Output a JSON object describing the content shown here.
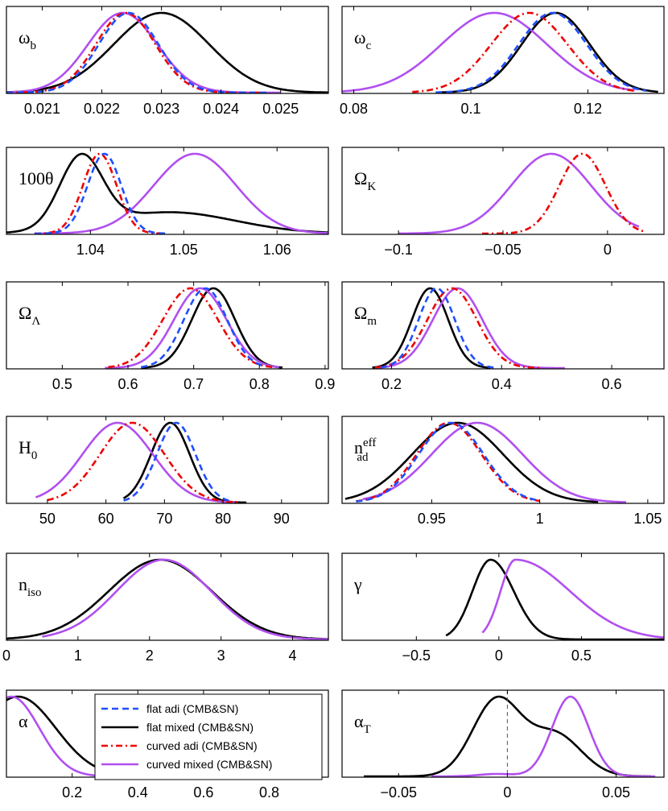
{
  "chart_data": {
    "type": "line",
    "legend": {
      "placement": "bottom-left-panel-top-right",
      "entries": [
        {
          "key": "flat_adi",
          "label": "flat adi (CMB&SN)",
          "color": "#1f4fff",
          "dash": "dashed"
        },
        {
          "key": "flat_mixed",
          "label": "flat mixed (CMB&SN)",
          "color": "#000000",
          "dash": "solid"
        },
        {
          "key": "curved_adi",
          "label": "curved adi (CMB&SN)",
          "color": "#ee0000",
          "dash": "dashdot"
        },
        {
          "key": "curved_mixed",
          "label": "curved mixed (CMB&SN)",
          "color": "#b14ff0",
          "dash": "solid"
        }
      ]
    },
    "panels": [
      {
        "id": "omega_b",
        "label_main": "ω",
        "label_sub": "b",
        "label_sup": "",
        "xlim": [
          0.0204,
          0.0258
        ],
        "ticks": [
          0.021,
          0.022,
          0.023,
          0.024,
          0.025
        ],
        "tick_labels": [
          "0.021",
          "0.022",
          "0.023",
          "0.024",
          "0.025"
        ],
        "series": [
          {
            "key": "flat_adi",
            "type": "gauss",
            "mu": 0.02245,
            "sigma": 0.0005,
            "range": [
              0.0204,
              0.0248
            ]
          },
          {
            "key": "curved_adi",
            "type": "gauss",
            "mu": 0.0224,
            "sigma": 0.0005,
            "range": [
              0.0204,
              0.0248
            ]
          },
          {
            "key": "flat_mixed",
            "type": "gauss",
            "mu": 0.023,
            "sigma": 0.0008,
            "range": [
              0.0204,
              0.0258
            ]
          },
          {
            "key": "curved_mixed",
            "type": "gauss",
            "mu": 0.02235,
            "sigma": 0.00058,
            "range": [
              0.0204,
              0.025
            ]
          }
        ]
      },
      {
        "id": "omega_c",
        "label_main": "ω",
        "label_sub": "c",
        "label_sup": "",
        "xlim": [
          0.078,
          0.133
        ],
        "ticks": [
          0.08,
          0.1,
          0.12
        ],
        "tick_labels": [
          "0.08",
          "0.1",
          "0.12"
        ],
        "series": [
          {
            "key": "flat_adi",
            "type": "gauss",
            "mu": 0.114,
            "sigma": 0.0058,
            "range": [
              0.094,
              0.13
            ]
          },
          {
            "key": "curved_adi",
            "type": "gauss",
            "mu": 0.11,
            "sigma": 0.0065,
            "range": [
              0.09,
              0.128
            ]
          },
          {
            "key": "flat_mixed",
            "type": "gauss",
            "mu": 0.1145,
            "sigma": 0.0058,
            "range": [
              0.094,
              0.132
            ]
          },
          {
            "key": "curved_mixed",
            "type": "gauss",
            "mu": 0.104,
            "sigma": 0.009,
            "range": [
              0.078,
              0.128
            ]
          }
        ]
      },
      {
        "id": "theta",
        "label_main": "100θ",
        "label_sub": "",
        "label_sup": "",
        "xlim": [
          1.031,
          1.0655
        ],
        "ticks": [
          1.04,
          1.05,
          1.06
        ],
        "tick_labels": [
          "1.04",
          "1.05",
          "1.06"
        ],
        "series": [
          {
            "key": "flat_adi",
            "type": "gauss",
            "mu": 1.0415,
            "sigma": 0.0018,
            "range": [
              1.034,
              1.048
            ]
          },
          {
            "key": "curved_adi",
            "type": "gauss",
            "mu": 1.041,
            "sigma": 0.0018,
            "range": [
              1.034,
              1.048
            ]
          },
          {
            "key": "flat_mixed",
            "type": "mix",
            "comps": [
              [
                1.039,
                0.0023,
                1.0
              ],
              [
                1.0485,
                0.007,
                0.3
              ]
            ],
            "range": [
              1.031,
              1.0655
            ]
          },
          {
            "key": "curved_mixed",
            "type": "gauss",
            "mu": 1.0512,
            "sigma": 0.0044,
            "range": [
              1.0345,
              1.0655
            ]
          }
        ]
      },
      {
        "id": "omega_k",
        "label_main": "Ω",
        "label_sub": "K",
        "label_sup": "",
        "xlim": [
          -0.127,
          0.027
        ],
        "ticks": [
          -0.1,
          -0.05,
          0
        ],
        "tick_labels": [
          "−0.1",
          "−0.05",
          "0"
        ],
        "series": [
          {
            "key": "curved_adi",
            "type": "gauss",
            "mu": -0.012,
            "sigma": 0.011,
            "range": [
              -0.06,
              0.018
            ]
          },
          {
            "key": "curved_mixed",
            "type": "gauss",
            "mu": -0.027,
            "sigma": 0.019,
            "range": [
              -0.1,
              0.015
            ]
          }
        ]
      },
      {
        "id": "omega_lambda",
        "label_main": "Ω",
        "label_sub": "Λ",
        "label_sup": "",
        "xlim": [
          0.415,
          0.905
        ],
        "ticks": [
          0.5,
          0.6,
          0.7,
          0.8,
          0.9
        ],
        "tick_labels": [
          "0.5",
          "0.6",
          "0.7",
          "0.8",
          "0.9"
        ],
        "series": [
          {
            "key": "flat_adi",
            "type": "gauss",
            "mu": 0.718,
            "sigma": 0.033,
            "range": [
              0.62,
              0.81
            ]
          },
          {
            "key": "curved_adi",
            "type": "gauss",
            "mu": 0.695,
            "sigma": 0.042,
            "range": [
              0.57,
              0.82
            ]
          },
          {
            "key": "flat_mixed",
            "type": "gauss",
            "mu": 0.73,
            "sigma": 0.033,
            "range": [
              0.62,
              0.835
            ]
          },
          {
            "key": "curved_mixed",
            "type": "gauss",
            "mu": 0.71,
            "sigma": 0.04,
            "range": [
              0.565,
              0.83
            ]
          }
        ]
      },
      {
        "id": "omega_m",
        "label_main": "Ω",
        "label_sub": "m",
        "label_sup": "",
        "xlim": [
          0.11,
          0.695
        ],
        "ticks": [
          0.2,
          0.4,
          0.6
        ],
        "tick_labels": [
          "0.2",
          "0.4",
          "0.6"
        ],
        "series": [
          {
            "key": "flat_adi",
            "type": "gauss",
            "mu": 0.282,
            "sigma": 0.033,
            "range": [
              0.18,
              0.39
            ]
          },
          {
            "key": "curved_adi",
            "type": "gauss",
            "mu": 0.31,
            "sigma": 0.045,
            "range": [
              0.17,
              0.47
            ]
          },
          {
            "key": "flat_mixed",
            "type": "gauss",
            "mu": 0.27,
            "sigma": 0.033,
            "range": [
              0.165,
              0.38
            ]
          },
          {
            "key": "curved_mixed",
            "type": "gauss",
            "mu": 0.32,
            "sigma": 0.045,
            "range": [
              0.17,
              0.515
            ]
          }
        ]
      },
      {
        "id": "h0",
        "label_main": "H",
        "label_sub": "0",
        "label_sup": "",
        "xlim": [
          43,
          98
        ],
        "ticks": [
          50,
          60,
          70,
          80,
          90
        ],
        "tick_labels": [
          "50",
          "60",
          "70",
          "80",
          "90"
        ],
        "series": [
          {
            "key": "flat_adi",
            "type": "gauss",
            "mu": 72.0,
            "sigma": 3.3,
            "range": [
              63,
              81
            ]
          },
          {
            "key": "curved_adi",
            "type": "gauss",
            "mu": 64.5,
            "sigma": 5.5,
            "range": [
              50,
              83
            ]
          },
          {
            "key": "flat_mixed",
            "type": "gauss",
            "mu": 71.0,
            "sigma": 3.3,
            "range": [
              63,
              84
            ]
          },
          {
            "key": "curved_mixed",
            "type": "gauss",
            "mu": 62.0,
            "sigma": 6.0,
            "range": [
              48,
              82
            ]
          }
        ]
      },
      {
        "id": "n_ad",
        "label_main": "n",
        "label_sub": "ad",
        "label_sup": "eff",
        "xlim": [
          0.9085,
          1.0575
        ],
        "ticks": [
          0.95,
          1.0,
          1.05
        ],
        "tick_labels": [
          "0.95",
          "1",
          "1.05"
        ],
        "series": [
          {
            "key": "flat_adi",
            "type": "gauss",
            "mu": 0.959,
            "sigma": 0.015,
            "range": [
              0.915,
              1.0
            ]
          },
          {
            "key": "curved_adi",
            "type": "gauss",
            "mu": 0.958,
            "sigma": 0.015,
            "range": [
              0.915,
              1.0
            ]
          },
          {
            "key": "flat_mixed",
            "type": "gauss",
            "mu": 0.962,
            "sigma": 0.021,
            "range": [
              0.91,
              1.027
            ]
          },
          {
            "key": "curved_mixed",
            "type": "gauss",
            "mu": 0.971,
            "sigma": 0.021,
            "range": [
              0.918,
              1.04
            ]
          }
        ]
      },
      {
        "id": "n_iso",
        "label_main": "n",
        "label_sub": "iso",
        "label_sup": "",
        "xlim": [
          0,
          4.5
        ],
        "ticks": [
          0,
          1,
          2,
          3,
          4
        ],
        "tick_labels": [
          "0",
          "1",
          "2",
          "3",
          "4"
        ],
        "series": [
          {
            "key": "flat_mixed",
            "type": "gauss",
            "mu": 2.15,
            "sigma": 0.72,
            "range": [
              0.0,
              4.5
            ]
          },
          {
            "key": "curved_mixed",
            "type": "gauss",
            "mu": 2.2,
            "sigma": 0.66,
            "range": [
              0.5,
              4.5
            ]
          }
        ]
      },
      {
        "id": "gamma",
        "label_main": "γ",
        "label_sub": "",
        "label_sup": "",
        "xlim": [
          -0.95,
          1.0
        ],
        "ticks": [
          -0.5,
          0,
          0.5
        ],
        "tick_labels": [
          "−0.5",
          "0",
          "0.5"
        ],
        "series": [
          {
            "key": "flat_mixed",
            "type": "split",
            "mu": -0.05,
            "sl": 0.11,
            "sr": 0.14,
            "range": [
              -0.32,
              1.0
            ]
          },
          {
            "key": "curved_mixed",
            "type": "split",
            "mu": 0.1,
            "sl": 0.09,
            "sr": 0.33,
            "range": [
              -0.1,
              1.0
            ]
          }
        ]
      },
      {
        "id": "alpha",
        "label_main": "α",
        "label_sub": "",
        "label_sup": "",
        "xlim": [
          0,
          0.98
        ],
        "ticks": [
          0.2,
          0.4,
          0.6,
          0.8
        ],
        "tick_labels": [
          "0.2",
          "0.4",
          "0.6",
          "0.8"
        ],
        "series": [
          {
            "key": "flat_mixed",
            "type": "gauss",
            "mu": 0.035,
            "sigma": 0.115,
            "range": [
              0.0,
              0.5
            ]
          },
          {
            "key": "curved_mixed",
            "type": "gauss",
            "mu": 0.015,
            "sigma": 0.085,
            "range": [
              0.0,
              0.35
            ]
          }
        ]
      },
      {
        "id": "alpha_t",
        "label_main": "α",
        "label_sub": "T",
        "label_sup": "",
        "xlim": [
          -0.076,
          0.072
        ],
        "ticks": [
          -0.05,
          0,
          0.05
        ],
        "tick_labels": [
          "−0.05",
          "0",
          "0.05"
        ],
        "vline": 0,
        "series": [
          {
            "key": "flat_mixed",
            "type": "mix",
            "comps": [
              [
                -0.005,
                0.011,
                1.0
              ],
              [
                0.022,
                0.012,
                0.55
              ]
            ],
            "range": [
              -0.066,
              0.066
            ]
          },
          {
            "key": "curved_mixed",
            "type": "mix",
            "comps": [
              [
                0.029,
                0.0085,
                1.0
              ],
              [
                -0.005,
                0.008,
                0.03
              ]
            ],
            "range": [
              -0.035,
              0.068
            ]
          }
        ]
      }
    ]
  }
}
